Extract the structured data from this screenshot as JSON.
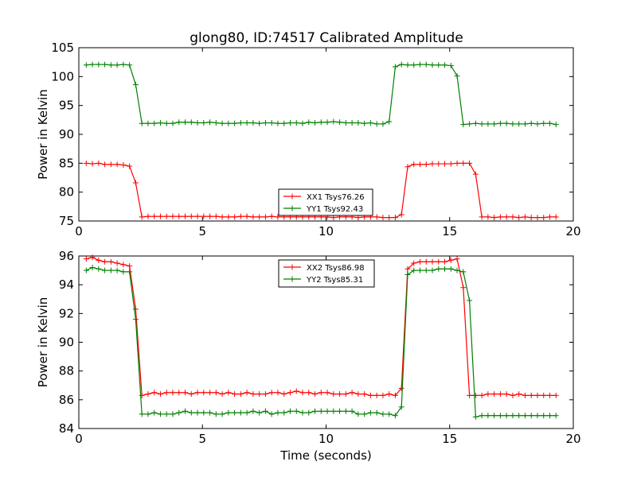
{
  "figure": {
    "title": "glong80, ID:74517 Calibrated Amplitude",
    "background": "#ffffff"
  },
  "chart_data": [
    {
      "type": "line",
      "title": "glong80, ID:74517 Calibrated Amplitude",
      "xlabel": "",
      "ylabel": "Power in Kelvin",
      "xlim": [
        0,
        20
      ],
      "ylim": [
        75,
        105
      ],
      "xticks": [
        0,
        5,
        10,
        15,
        20
      ],
      "yticks": [
        75,
        80,
        85,
        90,
        95,
        100,
        105
      ],
      "xtick_labels": [
        "0",
        "5",
        "10",
        "15",
        "20"
      ],
      "ytick_labels": [
        "75",
        "80",
        "85",
        "90",
        "95",
        "100",
        "105"
      ],
      "grid": false,
      "legend_position": "lower-center",
      "x": [
        0.3,
        0.55,
        0.8,
        1.05,
        1.3,
        1.55,
        1.8,
        2.05,
        2.3,
        2.55,
        2.8,
        3.05,
        3.3,
        3.55,
        3.8,
        4.05,
        4.3,
        4.55,
        4.8,
        5.05,
        5.3,
        5.55,
        5.8,
        6.05,
        6.3,
        6.55,
        6.8,
        7.05,
        7.3,
        7.55,
        7.8,
        8.05,
        8.3,
        8.55,
        8.8,
        9.05,
        9.3,
        9.55,
        9.8,
        10.05,
        10.3,
        10.55,
        10.8,
        11.05,
        11.3,
        11.55,
        11.8,
        12.05,
        12.3,
        12.55,
        12.8,
        13.05,
        13.3,
        13.55,
        13.8,
        14.05,
        14.3,
        14.55,
        14.8,
        15.05,
        15.3,
        15.55,
        15.8,
        16.05,
        16.3,
        16.55,
        16.8,
        17.05,
        17.3,
        17.55,
        17.8,
        18.05,
        18.3,
        18.55,
        18.8,
        19.05,
        19.3
      ],
      "series": [
        {
          "name": "XX1 Tsys76.26",
          "color": "#ff0000",
          "values": [
            85.0,
            84.9,
            85.0,
            84.8,
            84.8,
            84.8,
            84.7,
            84.5,
            81.6,
            75.7,
            75.8,
            75.8,
            75.8,
            75.8,
            75.8,
            75.8,
            75.8,
            75.8,
            75.8,
            75.8,
            75.8,
            75.8,
            75.7,
            75.7,
            75.7,
            75.8,
            75.8,
            75.7,
            75.7,
            75.7,
            75.8,
            75.7,
            75.7,
            75.7,
            75.7,
            75.7,
            75.7,
            75.7,
            75.7,
            75.7,
            75.6,
            75.7,
            75.7,
            75.7,
            75.6,
            75.7,
            75.7,
            75.7,
            75.6,
            75.6,
            75.6,
            76.1,
            84.4,
            84.8,
            84.8,
            84.8,
            84.9,
            84.9,
            84.9,
            84.9,
            85.0,
            85.0,
            85.0,
            83.1,
            75.7,
            75.7,
            75.6,
            75.7,
            75.7,
            75.7,
            75.6,
            75.7,
            75.6,
            75.6,
            75.6,
            75.7,
            75.7
          ]
        },
        {
          "name": "YY1 Tsys92.43",
          "color": "#008000",
          "values": [
            102.0,
            102.1,
            102.1,
            102.1,
            102.0,
            102.0,
            102.1,
            102.0,
            98.6,
            91.9,
            91.9,
            91.9,
            92.0,
            91.9,
            91.9,
            92.1,
            92.1,
            92.1,
            92.0,
            92.0,
            92.1,
            92.0,
            91.9,
            91.9,
            91.9,
            92.0,
            92.0,
            92.0,
            91.9,
            92.0,
            92.0,
            91.9,
            91.9,
            92.0,
            92.0,
            91.9,
            92.1,
            92.0,
            92.1,
            92.1,
            92.2,
            92.1,
            92.0,
            92.0,
            92.0,
            91.9,
            92.0,
            91.8,
            91.8,
            92.2,
            101.7,
            102.1,
            102.0,
            102.0,
            102.1,
            102.1,
            102.0,
            102.0,
            102.0,
            101.9,
            100.1,
            91.7,
            91.8,
            91.9,
            91.8,
            91.8,
            91.8,
            91.9,
            91.9,
            91.8,
            91.8,
            91.8,
            91.9,
            91.8,
            91.9,
            91.9,
            91.7
          ]
        }
      ]
    },
    {
      "type": "line",
      "title": "",
      "xlabel": "Time (seconds)",
      "ylabel": "Power in Kelvin",
      "xlim": [
        0,
        20
      ],
      "ylim": [
        84,
        96
      ],
      "xticks": [
        0,
        5,
        10,
        15,
        20
      ],
      "yticks": [
        84,
        86,
        88,
        90,
        92,
        94,
        96
      ],
      "xtick_labels": [
        "0",
        "5",
        "10",
        "15",
        "20"
      ],
      "ytick_labels": [
        "84",
        "86",
        "88",
        "90",
        "92",
        "94",
        "96"
      ],
      "grid": false,
      "legend_position": "upper-center",
      "x": [
        0.3,
        0.55,
        0.8,
        1.05,
        1.3,
        1.55,
        1.8,
        2.05,
        2.3,
        2.55,
        2.8,
        3.05,
        3.3,
        3.55,
        3.8,
        4.05,
        4.3,
        4.55,
        4.8,
        5.05,
        5.3,
        5.55,
        5.8,
        6.05,
        6.3,
        6.55,
        6.8,
        7.05,
        7.3,
        7.55,
        7.8,
        8.05,
        8.3,
        8.55,
        8.8,
        9.05,
        9.3,
        9.55,
        9.8,
        10.05,
        10.3,
        10.55,
        10.8,
        11.05,
        11.3,
        11.55,
        11.8,
        12.05,
        12.3,
        12.55,
        12.8,
        13.05,
        13.3,
        13.55,
        13.8,
        14.05,
        14.3,
        14.55,
        14.8,
        15.05,
        15.3,
        15.55,
        15.8,
        16.05,
        16.3,
        16.55,
        16.8,
        17.05,
        17.3,
        17.55,
        17.8,
        18.05,
        18.3,
        18.55,
        18.8,
        19.05,
        19.3
      ],
      "series": [
        {
          "name": "XX2 Tsys86.98",
          "color": "#ff0000",
          "values": [
            95.8,
            95.9,
            95.7,
            95.6,
            95.6,
            95.5,
            95.4,
            95.3,
            92.3,
            86.3,
            86.4,
            86.5,
            86.4,
            86.5,
            86.5,
            86.5,
            86.5,
            86.4,
            86.5,
            86.5,
            86.5,
            86.5,
            86.4,
            86.5,
            86.4,
            86.4,
            86.5,
            86.4,
            86.4,
            86.4,
            86.5,
            86.5,
            86.4,
            86.5,
            86.6,
            86.5,
            86.5,
            86.4,
            86.5,
            86.5,
            86.4,
            86.4,
            86.4,
            86.5,
            86.4,
            86.4,
            86.3,
            86.3,
            86.3,
            86.4,
            86.3,
            86.8,
            95.1,
            95.5,
            95.6,
            95.6,
            95.6,
            95.6,
            95.6,
            95.7,
            95.8,
            93.8,
            86.3,
            86.3,
            86.3,
            86.4,
            86.4,
            86.4,
            86.4,
            86.3,
            86.4,
            86.3,
            86.3,
            86.3,
            86.3,
            86.3,
            86.3
          ]
        },
        {
          "name": "YY2 Tsys85.31",
          "color": "#008000",
          "values": [
            95.0,
            95.2,
            95.1,
            95.0,
            95.0,
            95.0,
            94.9,
            94.9,
            91.6,
            85.0,
            85.0,
            85.1,
            85.0,
            85.0,
            85.0,
            85.1,
            85.2,
            85.1,
            85.1,
            85.1,
            85.1,
            85.0,
            85.0,
            85.1,
            85.1,
            85.1,
            85.1,
            85.2,
            85.1,
            85.2,
            85.0,
            85.1,
            85.1,
            85.2,
            85.2,
            85.1,
            85.1,
            85.2,
            85.2,
            85.2,
            85.2,
            85.2,
            85.2,
            85.2,
            85.0,
            85.0,
            85.1,
            85.1,
            85.0,
            85.0,
            84.9,
            85.5,
            94.7,
            95.0,
            95.0,
            95.0,
            95.0,
            95.1,
            95.1,
            95.1,
            95.0,
            94.9,
            92.9,
            84.8,
            84.9,
            84.9,
            84.9,
            84.9,
            84.9,
            84.9,
            84.9,
            84.9,
            84.9,
            84.9,
            84.9,
            84.9,
            84.9
          ]
        }
      ]
    }
  ]
}
